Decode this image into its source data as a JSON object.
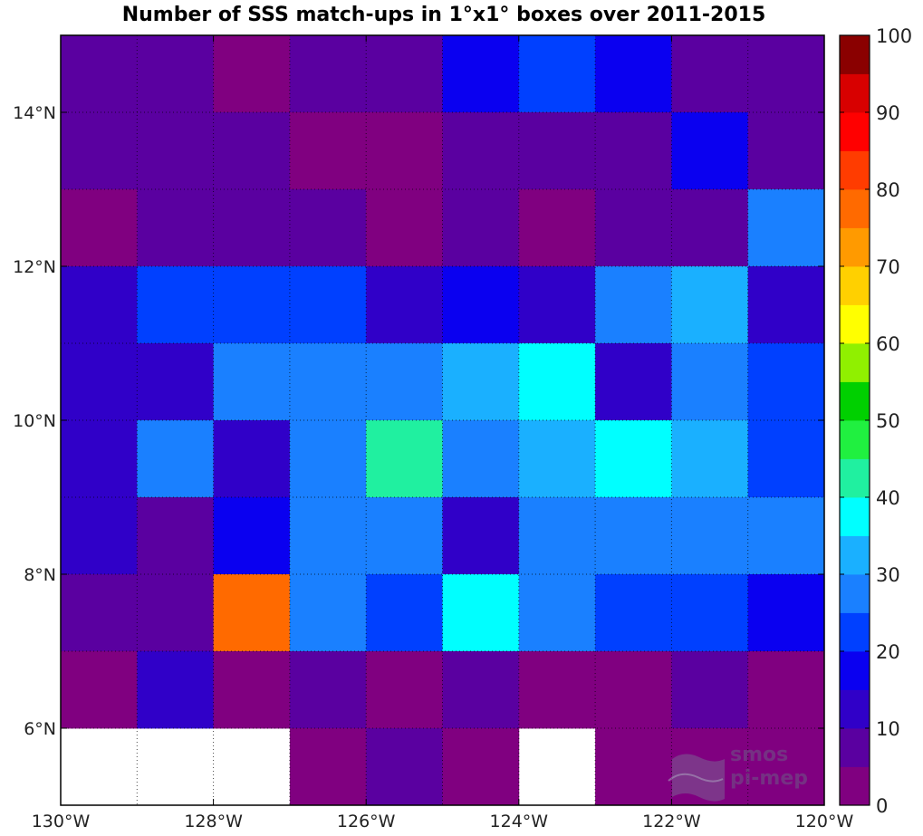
{
  "chart_data": {
    "type": "heatmap",
    "title": "Number of SSS match-ups in 1°x1° boxes over 2011-2015",
    "x_centers": [
      -129.5,
      -128.5,
      -127.5,
      -126.5,
      -125.5,
      -124.5,
      -123.5,
      -122.5,
      -121.5,
      -120.5
    ],
    "y_centers": [
      14.5,
      13.5,
      12.5,
      11.5,
      10.5,
      9.5,
      8.5,
      7.5,
      6.5,
      5.5
    ],
    "xlim": [
      -130,
      -120
    ],
    "ylim": [
      5,
      15
    ],
    "xtick_labels": [
      "130°W",
      "128°W",
      "126°W",
      "124°W",
      "122°W",
      "120°W"
    ],
    "ytick_labels": [
      "14°N",
      "12°N",
      "10°N",
      "8°N",
      "6°N"
    ],
    "values": [
      [
        7,
        7,
        3,
        7,
        7,
        17,
        22,
        17,
        9,
        9
      ],
      [
        7,
        7,
        7,
        3,
        3,
        7,
        7,
        7,
        17,
        5
      ],
      [
        3,
        7,
        7,
        7,
        3,
        7,
        3,
        7,
        7,
        27
      ],
      [
        12,
        22,
        22,
        22,
        12,
        17,
        12,
        27,
        32,
        12
      ],
      [
        12,
        12,
        27,
        27,
        27,
        32,
        38,
        12,
        27,
        22
      ],
      [
        12,
        27,
        12,
        27,
        43,
        25,
        32,
        38,
        32,
        22
      ],
      [
        12,
        7,
        17,
        27,
        27,
        12,
        27,
        27,
        27,
        27
      ],
      [
        7,
        7,
        77,
        27,
        22,
        38,
        27,
        22,
        22,
        17
      ],
      [
        3,
        12,
        3,
        7,
        3,
        7,
        3,
        3,
        7,
        3
      ],
      [
        null,
        null,
        null,
        3,
        7,
        3,
        null,
        3,
        3,
        3
      ]
    ],
    "colorbar": {
      "min": 0,
      "max": 100,
      "step": 5,
      "tick_labels": [
        "0",
        "10",
        "20",
        "30",
        "40",
        "50",
        "60",
        "70",
        "80",
        "90",
        "100"
      ],
      "colors": [
        "#800080",
        "#5a00a0",
        "#3000c8",
        "#0a00f0",
        "#0040ff",
        "#1a80ff",
        "#1ab0ff",
        "#00ffff",
        "#20f0a0",
        "#20f040",
        "#00d000",
        "#90f000",
        "#ffff00",
        "#ffd000",
        "#ff9a00",
        "#ff6a00",
        "#ff3c00",
        "#ff0000",
        "#d80000",
        "#8a0000"
      ]
    },
    "grid": "dotted"
  },
  "watermark": {
    "line1": "smos",
    "line2": "pi-mep"
  }
}
